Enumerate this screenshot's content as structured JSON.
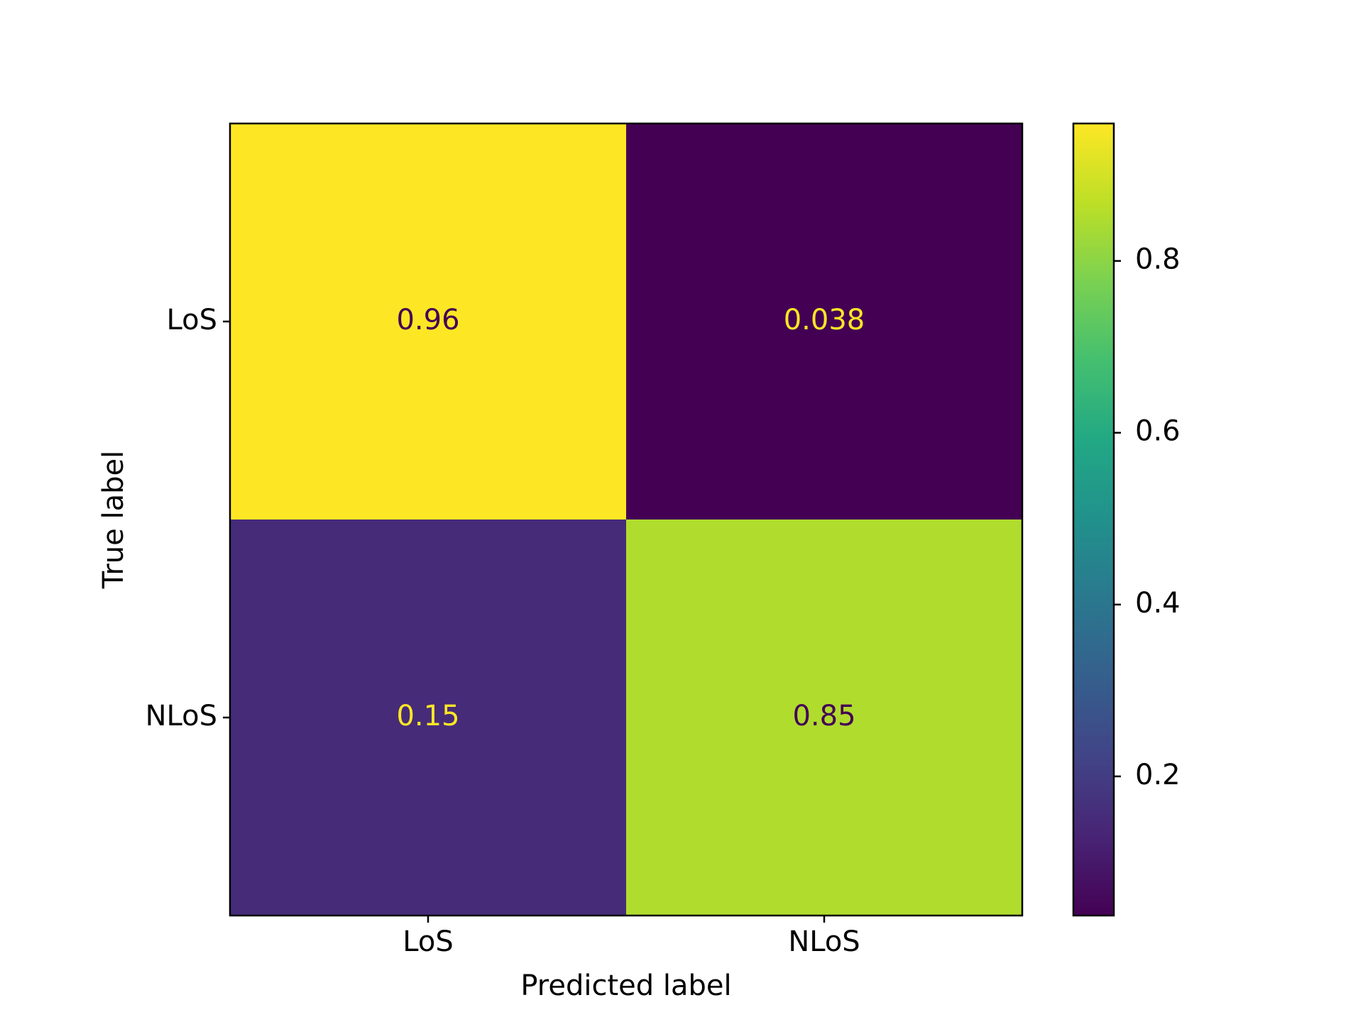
{
  "chart_data": {
    "type": "heatmap",
    "title": "",
    "xlabel": "Predicted label",
    "ylabel": "True label",
    "x_categories": [
      "LoS",
      "NLoS"
    ],
    "y_categories": [
      "LoS",
      "NLoS"
    ],
    "values": [
      [
        0.96,
        0.038
      ],
      [
        0.15,
        0.85
      ]
    ],
    "value_labels": [
      [
        "0.96",
        "0.038"
      ],
      [
        "0.15",
        "0.85"
      ]
    ],
    "colormap": "viridis",
    "colorbar": {
      "range": [
        0.038,
        0.96
      ],
      "ticks": [
        0.2,
        0.4,
        0.6,
        0.8
      ],
      "tick_labels": [
        "0.2",
        "0.4",
        "0.6",
        "0.8"
      ]
    },
    "grid": false,
    "legend": "colorbar right"
  }
}
